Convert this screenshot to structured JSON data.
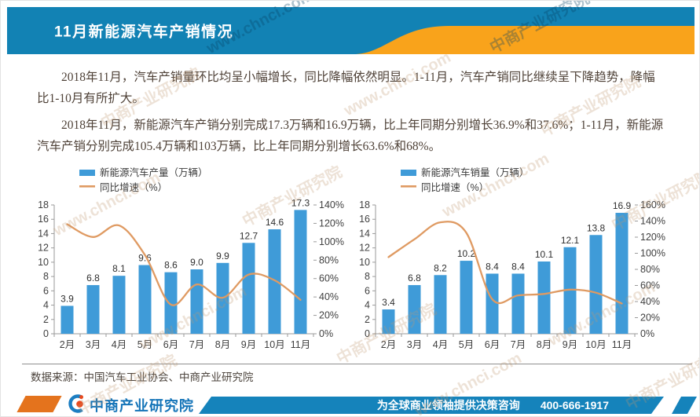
{
  "header": {
    "title": "11月新能源汽车产销情况"
  },
  "paragraphs": {
    "p1": "2018年11月，汽车产销量环比均呈小幅增长，同比降幅依然明显。1-11月，汽车产销同比继续呈下降趋势，降幅比1-10月有所扩大。",
    "p2": "2018年11月，新能源汽车产销分别完成17.3万辆和16.9万辆，比上年同期分别增长36.9%和37.6%；1-11月，新能源汽车产销分别完成105.4万辆和103万辆，比上年同期分别增长63.6%和68%。"
  },
  "chart_data": [
    {
      "type": "bar+line",
      "title": "",
      "categories": [
        "2月",
        "3月",
        "4月",
        "5月",
        "6月",
        "7月",
        "8月",
        "9月",
        "10月",
        "11月"
      ],
      "series": [
        {
          "name": "新能源汽车产量（万辆）",
          "kind": "bar",
          "axis": "left",
          "values": [
            3.9,
            6.8,
            8.1,
            9.6,
            8.6,
            9.0,
            9.9,
            12.7,
            14.6,
            17.3
          ]
        },
        {
          "name": "同比增速（%）",
          "kind": "line",
          "axis": "right",
          "values": [
            119.1,
            105.2,
            117.7,
            85.6,
            31.7,
            53.6,
            39.2,
            64.4,
            58.1,
            36.9
          ]
        }
      ],
      "left_axis": {
        "min": 0,
        "max": 18,
        "step": 2,
        "suffix": ""
      },
      "right_axis": {
        "min": 0,
        "max": 140,
        "step": 20,
        "suffix": "%"
      },
      "legend_position": "top-left",
      "grid": false
    },
    {
      "type": "bar+line",
      "title": "",
      "categories": [
        "2月",
        "3月",
        "4月",
        "5月",
        "6月",
        "7月",
        "8月",
        "9月",
        "10月",
        "11月"
      ],
      "series": [
        {
          "name": "新能源汽车销量（万辆）",
          "kind": "bar",
          "axis": "left",
          "values": [
            3.4,
            6.8,
            8.2,
            10.2,
            8.4,
            8.4,
            10.1,
            12.1,
            13.8,
            16.9
          ]
        },
        {
          "name": "同比增速（%）",
          "kind": "line",
          "axis": "right",
          "values": [
            95.2,
            117.4,
            138.4,
            125.6,
            42.9,
            47.7,
            49.5,
            54.8,
            51.0,
            37.6
          ]
        }
      ],
      "left_axis": {
        "min": 0,
        "max": 18,
        "step": 2,
        "suffix": ""
      },
      "right_axis": {
        "min": 0,
        "max": 160,
        "step": 20,
        "suffix": "%"
      },
      "legend_position": "top-left",
      "grid": false
    }
  ],
  "source_note": "数据来源：中国汽车工业协会、中商产业研究院",
  "footer": {
    "brand": "中商产业研究院",
    "tagline": "为全球商业领袖提供决策咨询",
    "phone": "400-666-1917"
  },
  "watermark": {
    "brand": "中商产业研究院",
    "url": "www.chnci.com"
  },
  "colors": {
    "banner_blue": "#1282b4",
    "banner_orange": "#f9a31b",
    "bar_blue": "#3f9bd8",
    "line_orange": "#df9a62",
    "axis_gray": "#9a9a9a",
    "tick_text": "#3f3f3f",
    "label_text": "#2f2f2f",
    "footer_blue": "#1583bb",
    "footer_orange": "#e4731d",
    "brand_blue": "#1474b8",
    "logo_orange": "#e8491d"
  }
}
